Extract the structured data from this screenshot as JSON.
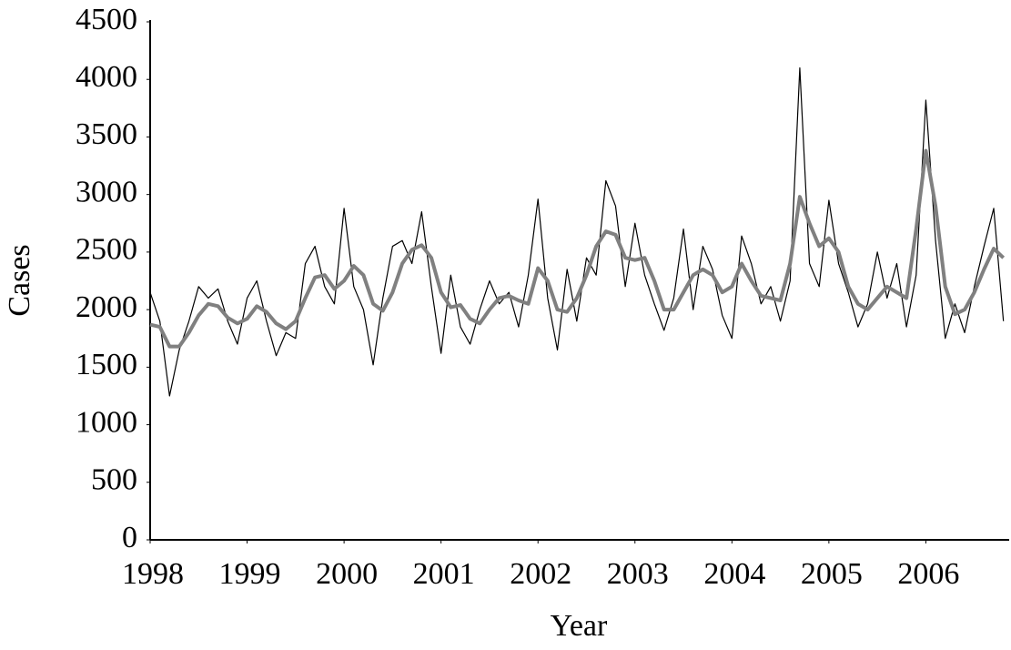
{
  "chart_data": {
    "type": "line",
    "xlabel": "Year",
    "ylabel": "Cases",
    "x": [
      1998.0,
      1998.1,
      1998.2,
      1998.3,
      1998.4,
      1998.5,
      1998.6,
      1998.7,
      1998.8,
      1998.9,
      1999.0,
      1999.1,
      1999.2,
      1999.3,
      1999.4,
      1999.5,
      1999.6,
      1999.7,
      1999.8,
      1999.9,
      2000.0,
      2000.1,
      2000.2,
      2000.3,
      2000.4,
      2000.5,
      2000.6,
      2000.7,
      2000.8,
      2000.9,
      2001.0,
      2001.1,
      2001.2,
      2001.3,
      2001.4,
      2001.5,
      2001.6,
      2001.7,
      2001.8,
      2001.9,
      2002.0,
      2002.1,
      2002.2,
      2002.3,
      2002.4,
      2002.5,
      2002.6,
      2002.7,
      2002.8,
      2002.9,
      2003.0,
      2003.1,
      2003.2,
      2003.3,
      2003.4,
      2003.5,
      2003.6,
      2003.7,
      2003.8,
      2003.9,
      2004.0,
      2004.1,
      2004.2,
      2004.3,
      2004.4,
      2004.5,
      2004.6,
      2004.7,
      2004.8,
      2004.9,
      2005.0,
      2005.1,
      2005.2,
      2005.3,
      2005.4,
      2005.5,
      2005.6,
      2005.7,
      2005.8,
      2005.9,
      2006.0,
      2006.1,
      2006.2,
      2006.3,
      2006.4,
      2006.5,
      2006.6,
      2006.7,
      2006.8
    ],
    "series": [
      {
        "color": "#000000",
        "width": 1.2,
        "values": [
          2150,
          1900,
          1250,
          1650,
          1900,
          2200,
          2100,
          2180,
          1900,
          1700,
          2100,
          2250,
          1900,
          1600,
          1800,
          1750,
          2400,
          2550,
          2200,
          2050,
          2880,
          2200,
          2000,
          1520,
          2100,
          2550,
          2600,
          2400,
          2850,
          2200,
          1620,
          2300,
          1850,
          1700,
          2000,
          2250,
          2050,
          2150,
          1850,
          2300,
          2960,
          2100,
          1650,
          2350,
          1900,
          2450,
          2300,
          3120,
          2900,
          2200,
          2750,
          2300,
          2050,
          1820,
          2100,
          2700,
          2000,
          2550,
          2350,
          1950,
          1750,
          2640,
          2400,
          2050,
          2200,
          1900,
          2250,
          4100,
          2400,
          2200,
          2950,
          2400,
          2150,
          1850,
          2050,
          2500,
          2100,
          2400,
          1850,
          2300,
          3820,
          2600,
          1750,
          2050,
          1800,
          2200,
          2550,
          2880,
          1900
        ]
      },
      {
        "color": "#808080",
        "width": 4,
        "values": [
          1870,
          1850,
          1680,
          1680,
          1800,
          1950,
          2050,
          2030,
          1930,
          1880,
          1920,
          2030,
          1980,
          1880,
          1830,
          1900,
          2100,
          2280,
          2300,
          2180,
          2250,
          2380,
          2300,
          2050,
          1990,
          2150,
          2400,
          2520,
          2560,
          2450,
          2150,
          2020,
          2040,
          1920,
          1880,
          2000,
          2100,
          2120,
          2080,
          2050,
          2360,
          2250,
          2000,
          1980,
          2100,
          2300,
          2550,
          2680,
          2650,
          2450,
          2430,
          2450,
          2250,
          2000,
          2000,
          2150,
          2300,
          2350,
          2300,
          2150,
          2200,
          2400,
          2250,
          2120,
          2100,
          2080,
          2400,
          2980,
          2750,
          2550,
          2620,
          2500,
          2200,
          2050,
          2000,
          2100,
          2200,
          2150,
          2100,
          2700,
          3380,
          2900,
          2200,
          1960,
          2000,
          2150,
          2350,
          2530,
          2450
        ]
      }
    ],
    "xlim": [
      1998,
      2006.85
    ],
    "xticks": [
      1998,
      1999,
      2000,
      2001,
      2002,
      2003,
      2004,
      2005,
      2006
    ],
    "ylim": [
      0,
      4500
    ],
    "yticks": [
      0,
      500,
      1000,
      1500,
      2000,
      2500,
      3000,
      3500,
      4000,
      4500
    ],
    "grid": false
  }
}
